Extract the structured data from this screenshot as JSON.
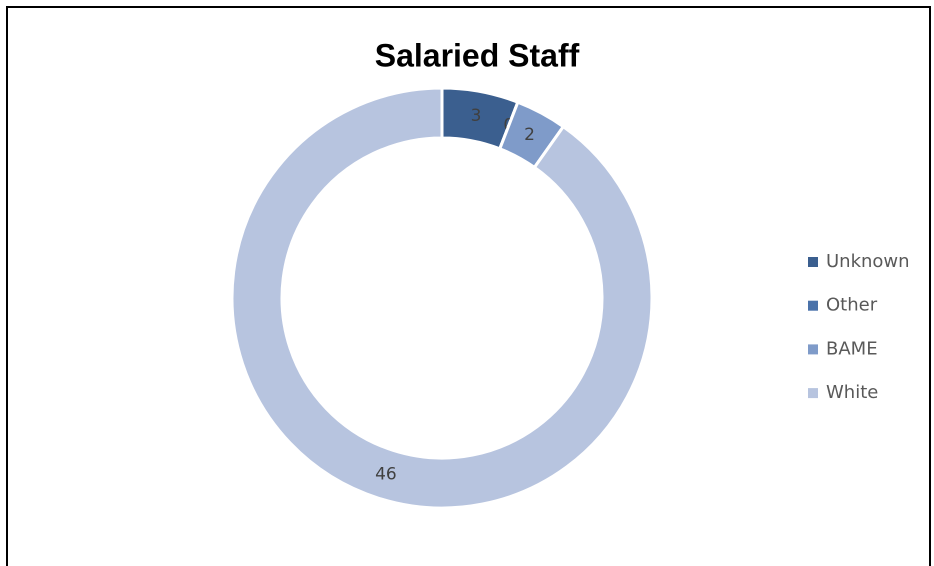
{
  "chart_data": {
    "type": "donut",
    "title": "Salaried Staff",
    "categories": [
      "Unknown",
      "Other",
      "BAME",
      "White"
    ],
    "values": [
      3,
      0,
      2,
      46
    ],
    "colors": [
      "#3b5f8f",
      "#4a72aa",
      "#7f9bc9",
      "#b7c4df"
    ],
    "legend": "right"
  }
}
